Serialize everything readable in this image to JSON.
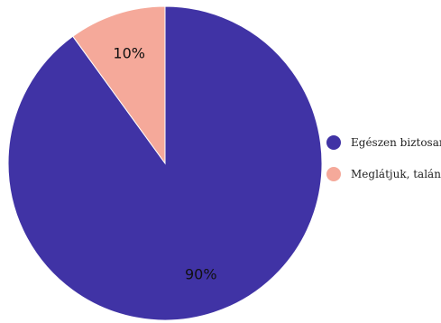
{
  "chart_data": {
    "type": "pie",
    "title": "",
    "labels": [
      "Egészen biztosan",
      "Meglátjuk, talán"
    ],
    "values": [
      90,
      10
    ],
    "value_labels": [
      "90%",
      "10%"
    ],
    "colors": [
      "#4033a5",
      "#f5a99a"
    ],
    "start_angle_deg": 0,
    "direction": "clockwise",
    "legend_position": "right"
  }
}
